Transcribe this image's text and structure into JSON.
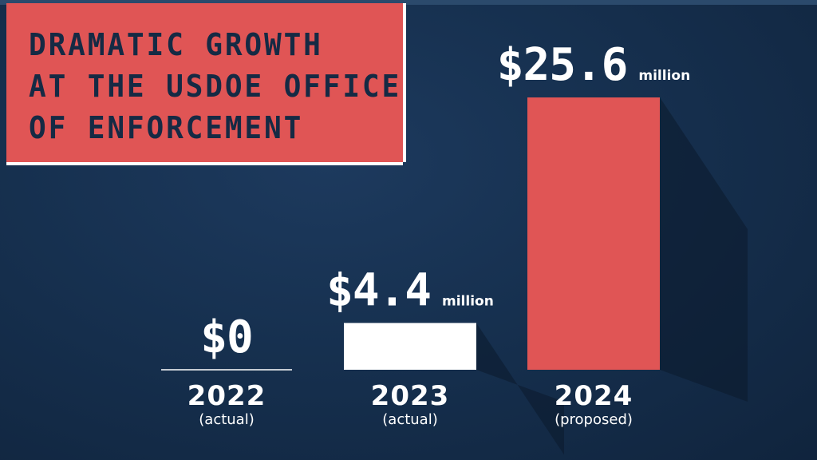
{
  "title_lines": [
    "DRAMATIC GROWTH",
    "AT THE USDOE OFFICE",
    "OF ENFORCEMENT"
  ],
  "chart_data": {
    "type": "bar",
    "title": "DRAMATIC GROWTH AT THE USDOE OFFICE OF ENFORCEMENT",
    "unit": "million",
    "categories": [
      "2022",
      "2023",
      "2024"
    ],
    "category_notes": [
      "(actual)",
      "(actual)",
      "(proposed)"
    ],
    "values": [
      0,
      4.4,
      25.6
    ],
    "value_labels": [
      "$0",
      "$4.4",
      "$25.6"
    ],
    "value_units": [
      "",
      "million",
      "million"
    ],
    "bar_colors": [
      "#ffffff",
      "#ffffff",
      "#e05555"
    ],
    "ylim": [
      0,
      25.6
    ]
  },
  "colors": {
    "background": "#16304f",
    "accent": "#e05555",
    "title_text": "#152a44",
    "text": "#ffffff"
  }
}
